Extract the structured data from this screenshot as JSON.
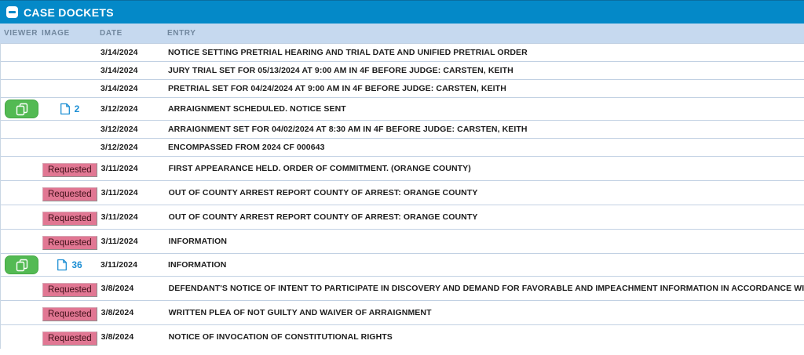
{
  "panel": {
    "title": "CASE DOCKETS"
  },
  "columns": [
    "VIEWER",
    "IMAGE",
    "DATE",
    "ENTRY"
  ],
  "badge_label": "Requested",
  "colors": {
    "titlebar_bg": "#0489c8",
    "column_header_bg": "#c6d9ef",
    "column_header_text": "#71879e",
    "viewer_button_green": "#53ba53",
    "doc_link_blue": "#1d8fd4",
    "requested_badge_pink": "#e17793",
    "row_border": "#c2d1e3",
    "entry_text": "#1c1c1c"
  },
  "icons": {
    "collapse": "minus-square",
    "viewer": "pages-icon",
    "image_doc": "document-icon"
  },
  "rows": [
    {
      "viewer": false,
      "pages": null,
      "badge": null,
      "date": "3/14/2024",
      "entry": "NOTICE SETTING PRETRIAL HEARING AND TRIAL DATE AND UNIFIED PRETRIAL ORDER"
    },
    {
      "viewer": false,
      "pages": null,
      "badge": null,
      "date": "3/14/2024",
      "entry": "JURY TRIAL SET FOR 05/13/2024 AT 9:00 AM IN 4F BEFORE JUDGE: CARSTEN, KEITH"
    },
    {
      "viewer": false,
      "pages": null,
      "badge": null,
      "date": "3/14/2024",
      "entry": "PRETRIAL SET FOR 04/24/2024 AT 9:00 AM IN 4F BEFORE JUDGE: CARSTEN, KEITH"
    },
    {
      "viewer": true,
      "pages": "2",
      "badge": null,
      "date": "3/12/2024",
      "entry": "ARRAIGNMENT SCHEDULED. NOTICE SENT"
    },
    {
      "viewer": false,
      "pages": null,
      "badge": null,
      "date": "3/12/2024",
      "entry": "ARRAIGNMENT SET FOR 04/02/2024 AT 8:30 AM IN 4F BEFORE JUDGE: CARSTEN, KEITH"
    },
    {
      "viewer": false,
      "pages": null,
      "badge": null,
      "date": "3/12/2024",
      "entry": "ENCOMPASSED FROM 2024 CF 000643"
    },
    {
      "viewer": false,
      "pages": null,
      "badge": "Requested",
      "date": "3/11/2024",
      "entry": "FIRST APPEARANCE HELD. ORDER OF COMMITMENT. (ORANGE COUNTY)"
    },
    {
      "viewer": false,
      "pages": null,
      "badge": "Requested",
      "date": "3/11/2024",
      "entry": "OUT OF COUNTY ARREST REPORT COUNTY OF ARREST: ORANGE COUNTY"
    },
    {
      "viewer": false,
      "pages": null,
      "badge": "Requested",
      "date": "3/11/2024",
      "entry": "OUT OF COUNTY ARREST REPORT COUNTY OF ARREST: ORANGE COUNTY"
    },
    {
      "viewer": false,
      "pages": null,
      "badge": "Requested",
      "date": "3/11/2024",
      "entry": "INFORMATION"
    },
    {
      "viewer": true,
      "pages": "36",
      "badge": null,
      "date": "3/11/2024",
      "entry": "INFORMATION"
    },
    {
      "viewer": false,
      "pages": null,
      "badge": "Requested",
      "date": "3/8/2024",
      "entry": "DEFENDANT'S NOTICE OF INTENT TO PARTICIPATE IN DISCOVERY AND DEMAND FOR FAVORABLE AND IMPEACHMENT INFORMATION IN ACCORDANCE WITH BRADY"
    },
    {
      "viewer": false,
      "pages": null,
      "badge": "Requested",
      "date": "3/8/2024",
      "entry": "WRITTEN PLEA OF NOT GUILTY AND WAIVER OF ARRAIGNMENT"
    },
    {
      "viewer": false,
      "pages": null,
      "badge": "Requested",
      "date": "3/8/2024",
      "entry": "NOTICE OF INVOCATION OF CONSTITUTIONAL RIGHTS"
    }
  ]
}
